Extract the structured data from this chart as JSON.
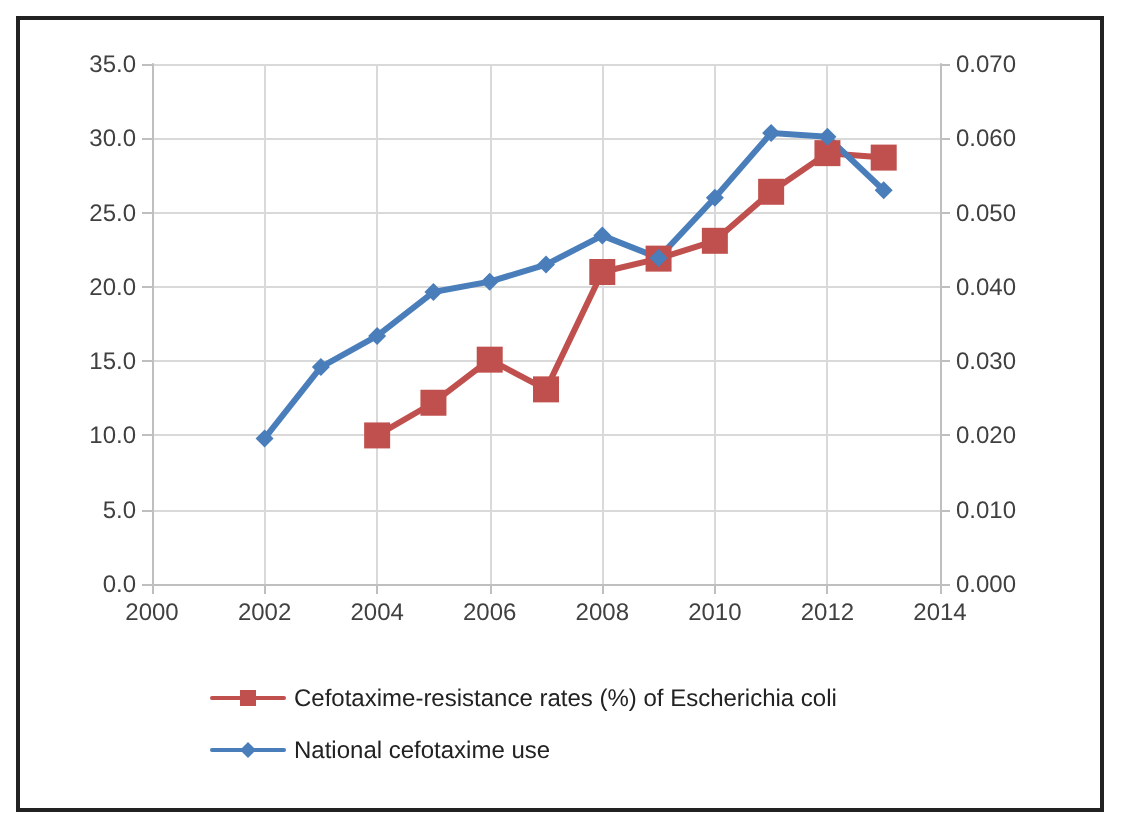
{
  "chart_data": {
    "type": "line",
    "x": [
      2002,
      2003,
      2004,
      2005,
      2006,
      2007,
      2008,
      2009,
      2010,
      2011,
      2012,
      2013
    ],
    "xlim": [
      2000,
      2014
    ],
    "xticks": [
      2000,
      2002,
      2004,
      2006,
      2008,
      2010,
      2012,
      2014
    ],
    "ylim": [
      0,
      35
    ],
    "yticks": [
      {
        "value": 0,
        "label": "0.0"
      },
      {
        "value": 5,
        "label": "5.0"
      },
      {
        "value": 10,
        "label": "10.0"
      },
      {
        "value": 15,
        "label": "15.0"
      },
      {
        "value": 20,
        "label": "20.0"
      },
      {
        "value": 25,
        "label": "25.0"
      },
      {
        "value": 30,
        "label": "30.0"
      },
      {
        "value": 35,
        "label": "35.0"
      }
    ],
    "y2lim": [
      0,
      0.07
    ],
    "y2ticks": [
      {
        "value": 0,
        "label": "0.000"
      },
      {
        "value": 0.01,
        "label": "0.010"
      },
      {
        "value": 0.02,
        "label": "0.020"
      },
      {
        "value": 0.03,
        "label": "0.030"
      },
      {
        "value": 0.04,
        "label": "0.040"
      },
      {
        "value": 0.05,
        "label": "0.050"
      },
      {
        "value": 0.06,
        "label": "0.060"
      },
      {
        "value": 0.07,
        "label": "0.070"
      }
    ],
    "grid": true,
    "legend": "bottom",
    "line_style": "solid",
    "series": [
      {
        "name": "Cefotaxime-resistance rates (%) of Escherichia coli",
        "color": "#c0504d",
        "marker": "square",
        "values": [
          null,
          null,
          10.0,
          12.2,
          15.1,
          13.1,
          21.0,
          21.9,
          23.1,
          26.4,
          29.0,
          28.7
        ]
      },
      {
        "name": "National cefotaxime use",
        "color": "#4a7ebb",
        "marker": "diamond",
        "axis": "y2",
        "values": [
          0.0196,
          0.0292,
          0.0334,
          0.0393,
          0.0407,
          0.043,
          0.0469,
          0.0439,
          0.052,
          0.0607,
          0.0602,
          0.053
        ]
      }
    ]
  }
}
